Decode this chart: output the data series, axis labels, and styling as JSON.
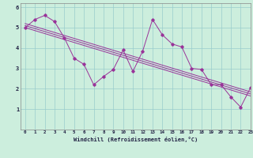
{
  "xlabel": "Windchill (Refroidissement éolien,°C)",
  "background_color": "#cceedd",
  "line_color": "#993399",
  "xlim": [
    -0.5,
    23
  ],
  "ylim": [
    0,
    6.2
  ],
  "xticks": [
    0,
    1,
    2,
    3,
    4,
    5,
    6,
    7,
    8,
    9,
    10,
    11,
    12,
    13,
    14,
    15,
    16,
    17,
    18,
    19,
    20,
    21,
    22,
    23
  ],
  "yticks": [
    1,
    2,
    3,
    4,
    5,
    6
  ],
  "grid_color": "#99cccc",
  "series_jagged": [
    5.0,
    5.4,
    5.6,
    5.3,
    4.5,
    3.5,
    3.2,
    2.2,
    2.6,
    2.95,
    3.9,
    2.85,
    3.85,
    5.4,
    4.65,
    4.2,
    4.05,
    3.0,
    2.95,
    2.2,
    2.2,
    1.6,
    1.1,
    2.05
  ],
  "series_linear1": [
    [
      0,
      5.0
    ],
    [
      23,
      1.65
    ]
  ],
  "series_linear2": [
    [
      0,
      5.1
    ],
    [
      23,
      1.75
    ]
  ],
  "series_linear3": [
    [
      0,
      5.2
    ],
    [
      23,
      1.85
    ]
  ]
}
